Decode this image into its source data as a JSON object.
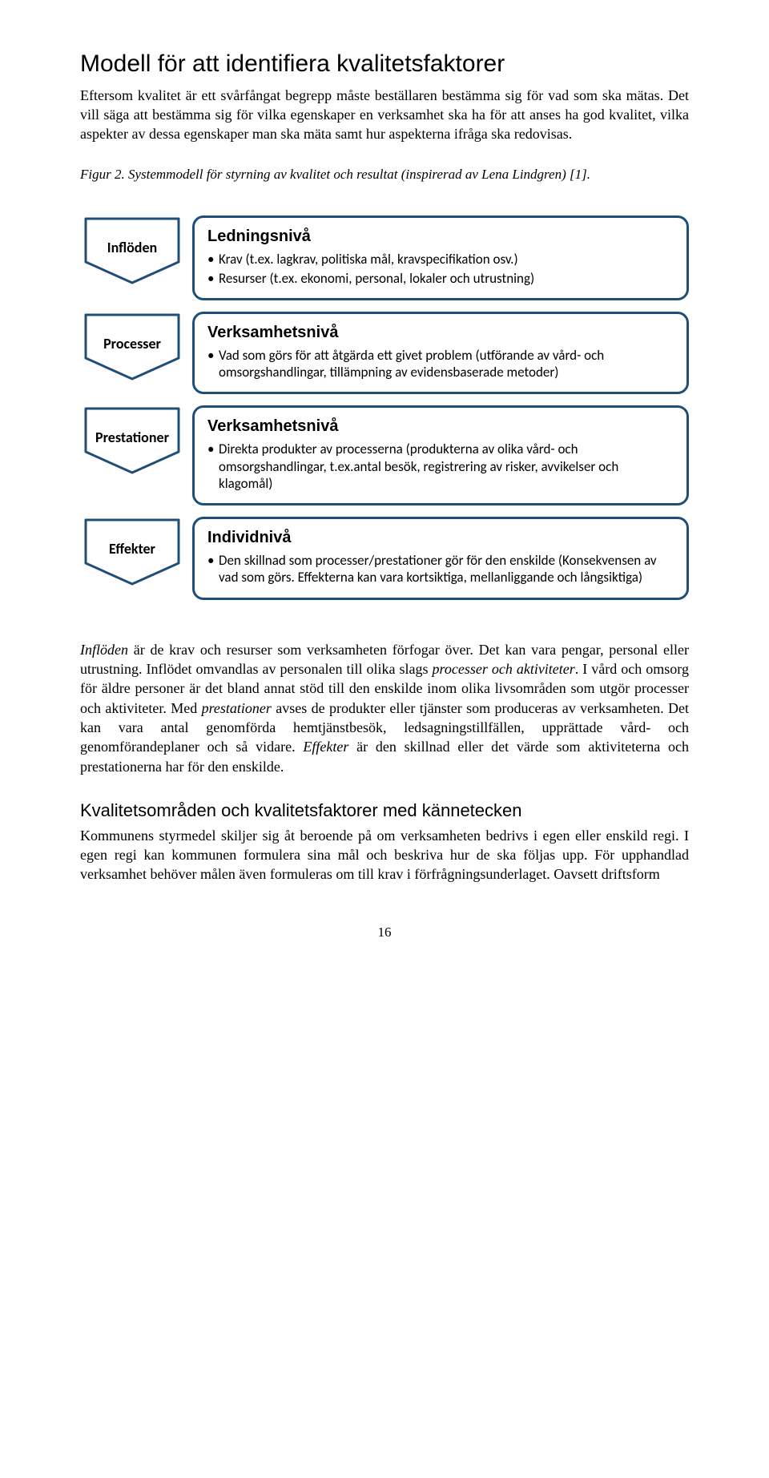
{
  "heading": "Modell för att identifiera kvalitetsfaktorer",
  "intro": "Eftersom kvalitet är ett svårfångat begrepp måste beställaren bestämma sig för vad som ska mätas. Det vill säga att bestämma sig för vilka egenskaper en verksamhet ska ha för att anses ha god kvalitet, vilka aspekter av dessa egenskaper man ska mäta samt hur aspekterna ifråga ska redovisas.",
  "figureCaption": "Figur 2. Systemmodell för styrning av kvalitet och resultat (inspirerad av Lena Lindgren) [1].",
  "diagram": {
    "chevronStroke": "#1f4e79",
    "chevronFill": "#ffffff",
    "boxBorder": "#1f4e79",
    "rows": [
      {
        "label": "Inflöden",
        "title": "Ledningsnivå",
        "bullets": [
          "Krav (t.ex. lagkrav, politiska mål, kravspecifikation osv.)",
          "Resurser (t.ex. ekonomi, personal, lokaler och utrustning)"
        ]
      },
      {
        "label": "Processer",
        "title": "Verksamhetsnivå",
        "bullets": [
          "Vad som görs för att åtgärda ett givet problem (utförande av vård- och omsorgshandlingar, tillämpning av evidensbaserade metoder)"
        ]
      },
      {
        "label": "Prestationer",
        "title": "Verksamhetsnivå",
        "bullets": [
          "Direkta produkter av processerna (produkterna av olika vård- och omsorgshandlingar, t.ex.antal besök, registrering av risker, avvikelser och klagomål)"
        ]
      },
      {
        "label": "Effekter",
        "title": "Individnivå",
        "bullets": [
          "Den skillnad som processer/prestationer gör för den enskilde (Konsekvensen av vad som görs. Effekterna kan vara kortsiktiga, mellanliggande och långsiktiga)"
        ]
      }
    ]
  },
  "bodyPara1": {
    "runs": [
      {
        "text": "Inflöden",
        "italic": true
      },
      {
        "text": " är de krav och resurser som verksamheten förfogar över. Det kan vara pengar, personal eller utrustning. Inflödet omvandlas av personalen till olika slags "
      },
      {
        "text": "processer och aktiviteter",
        "italic": true
      },
      {
        "text": ". I vård och omsorg för äldre personer är det bland annat stöd till den enskilde inom olika livsområden som utgör processer och aktiviteter. Med "
      },
      {
        "text": "prestationer",
        "italic": true
      },
      {
        "text": " avses de produkter eller tjänster som produceras av verksamheten. Det kan vara antal genomförda hemtjänstbesök, ledsagningstillfällen, upprättade vård- och genomförandeplaner och så vidare. "
      },
      {
        "text": "Effekter",
        "italic": true
      },
      {
        "text": " är den skillnad eller det värde som aktiviteterna och prestationerna har för den enskilde."
      }
    ]
  },
  "subheading": "Kvalitetsområden och kvalitetsfaktorer med kännetecken",
  "bodyPara2": "Kommunens styrmedel skiljer sig åt beroende på om verksamheten bedrivs i egen eller enskild regi. I egen regi kan kommunen formulera sina mål och beskriva hur de ska följas upp. För upphandlad verksamhet behöver målen även formuleras om till krav i förfrågningsunderlaget. Oavsett driftsform",
  "pageNumber": "16"
}
